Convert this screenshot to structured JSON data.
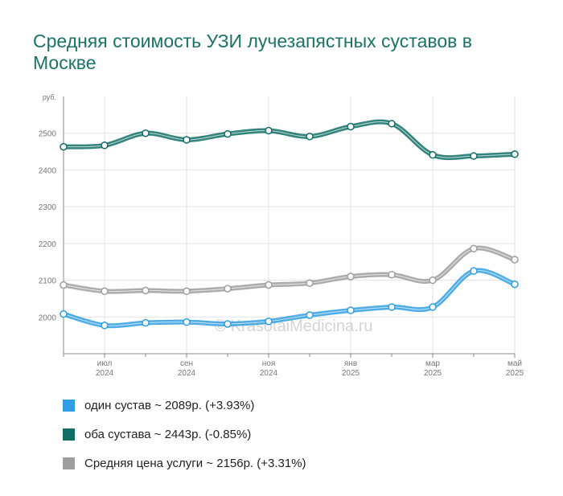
{
  "title": "Средняя стоимость УЗИ лучезапястных суставов в Москве",
  "watermark": "© KrasotaiMedicina.ru",
  "chart_data": {
    "type": "line",
    "title": "Средняя стоимость УЗИ лучезапястных суставов в Москве",
    "y_unit": "руб.",
    "ylim": [
      1900,
      2600
    ],
    "yticks": [
      2000,
      2100,
      2200,
      2300,
      2400,
      2500
    ],
    "grid": true,
    "x_ticks": [
      {
        "month": "июл",
        "year": "2024",
        "index": 1
      },
      {
        "month": "сен",
        "year": "2024",
        "index": 3
      },
      {
        "month": "ноя",
        "year": "2024",
        "index": 5
      },
      {
        "month": "янв",
        "year": "2025",
        "index": 7
      },
      {
        "month": "мар",
        "year": "2025",
        "index": 9
      },
      {
        "month": "май",
        "year": "2025",
        "index": 11
      }
    ],
    "series": [
      {
        "name": "один сустав",
        "color": "#2f9ee3",
        "values": [
          2008,
          1977,
          1984,
          1986,
          1981,
          1988,
          2005,
          2018,
          2027,
          2027,
          2125,
          2089
        ]
      },
      {
        "name": "оба сустава",
        "color": "#0f6e66",
        "values": [
          2463,
          2467,
          2500,
          2482,
          2498,
          2507,
          2491,
          2518,
          2526,
          2441,
          2438,
          2443
        ]
      },
      {
        "name": "Средняя цена услуги",
        "color": "#9e9e9e",
        "values": [
          2087,
          2070,
          2072,
          2070,
          2077,
          2087,
          2092,
          2110,
          2115,
          2100,
          2186,
          2156
        ]
      }
    ],
    "legend": [
      {
        "label": "один сустав ~ 2089р. (+3.93%)",
        "color": "#2f9ee3"
      },
      {
        "label": "оба сустава ~ 2443р. (-0.85%)",
        "color": "#0f6e66"
      },
      {
        "label": "Средняя цена услуги ~ 2156р. (+3.31%)",
        "color": "#9e9e9e"
      }
    ],
    "legend_position": "bottom-left"
  }
}
